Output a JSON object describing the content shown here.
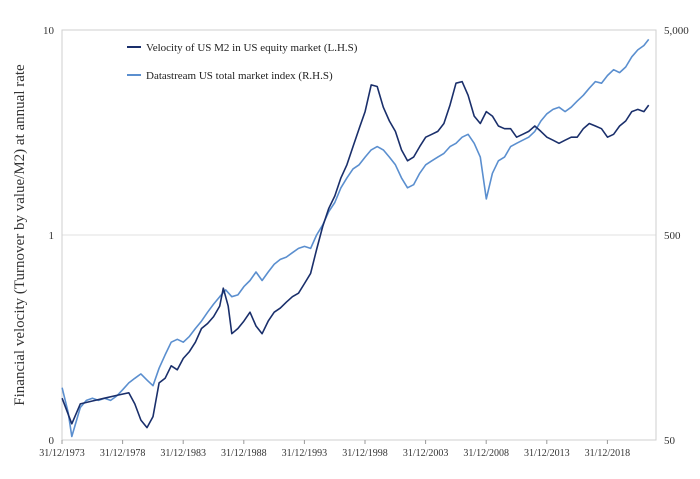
{
  "chart_data": {
    "type": "line",
    "title": "",
    "xlabel": "",
    "ylabel": "Financial velocity (Turnover by value/M2) at annual rate",
    "y_scale": "log",
    "ylim": [
      0.1,
      10
    ],
    "y_ticks": [
      {
        "value": 10,
        "label": "10"
      },
      {
        "value": 1,
        "label": "1"
      },
      {
        "value": 0.1,
        "label": "0"
      }
    ],
    "y2_scale": "log",
    "y2lim": [
      50,
      5000
    ],
    "y2_ticks": [
      {
        "value": 5000,
        "label": "5,000"
      },
      {
        "value": 500,
        "label": "500"
      },
      {
        "value": 50,
        "label": "50"
      }
    ],
    "xlim": [
      1973.99,
      2023.0
    ],
    "x_ticks": [
      {
        "value": 1973.99,
        "label": "31/12/1973"
      },
      {
        "value": 1978.99,
        "label": "31/12/1978"
      },
      {
        "value": 1983.99,
        "label": "31/12/1983"
      },
      {
        "value": 1988.99,
        "label": "31/12/1988"
      },
      {
        "value": 1993.99,
        "label": "31/12/1993"
      },
      {
        "value": 1998.99,
        "label": "31/12/1998"
      },
      {
        "value": 2003.99,
        "label": "31/12/2003"
      },
      {
        "value": 2008.99,
        "label": "31/12/2008"
      },
      {
        "value": 2013.99,
        "label": "31/12/2013"
      },
      {
        "value": 2018.99,
        "label": "31/12/2018"
      }
    ],
    "grid": true,
    "legend": "top-left",
    "series": [
      {
        "name": "Velocity of US M2 in US equity market (L.H.S)",
        "axis": "left",
        "color": "#1a2f6b",
        "x": [
          1974.0,
          1974.8,
          1975.5,
          1976.5,
          1977.5,
          1978.5,
          1979.5,
          1980.0,
          1980.5,
          1981.0,
          1981.5,
          1982.0,
          1982.5,
          1983.0,
          1983.5,
          1984.0,
          1984.5,
          1985.0,
          1985.5,
          1986.0,
          1986.5,
          1987.0,
          1987.3,
          1987.7,
          1988.0,
          1988.5,
          1989.0,
          1989.5,
          1990.0,
          1990.5,
          1991.0,
          1991.5,
          1992.0,
          1992.5,
          1993.0,
          1993.5,
          1994.0,
          1994.5,
          1995.0,
          1995.5,
          1996.0,
          1996.5,
          1997.0,
          1997.5,
          1998.0,
          1998.5,
          1999.0,
          1999.5,
          2000.0,
          2000.5,
          2001.0,
          2001.5,
          2002.0,
          2002.5,
          2003.0,
          2003.5,
          2004.0,
          2004.5,
          2005.0,
          2005.5,
          2006.0,
          2006.5,
          2007.0,
          2007.5,
          2008.0,
          2008.5,
          2009.0,
          2009.5,
          2010.0,
          2010.5,
          2011.0,
          2011.5,
          2012.0,
          2012.5,
          2013.0,
          2013.5,
          2014.0,
          2014.5,
          2015.0,
          2015.5,
          2016.0,
          2016.5,
          2017.0,
          2017.5,
          2018.0,
          2018.5,
          2019.0,
          2019.5,
          2020.0,
          2020.5,
          2021.0,
          2021.5,
          2022.0,
          2022.4
        ],
        "values": [
          0.16,
          0.12,
          0.15,
          0.155,
          0.16,
          0.165,
          0.17,
          0.15,
          0.125,
          0.115,
          0.13,
          0.19,
          0.2,
          0.23,
          0.22,
          0.25,
          0.27,
          0.3,
          0.35,
          0.37,
          0.4,
          0.45,
          0.55,
          0.45,
          0.33,
          0.35,
          0.38,
          0.42,
          0.36,
          0.33,
          0.38,
          0.42,
          0.44,
          0.47,
          0.5,
          0.52,
          0.58,
          0.65,
          0.85,
          1.1,
          1.35,
          1.55,
          1.9,
          2.2,
          2.7,
          3.3,
          4.0,
          5.4,
          5.3,
          4.2,
          3.6,
          3.2,
          2.6,
          2.3,
          2.4,
          2.7,
          3.0,
          3.1,
          3.2,
          3.5,
          4.3,
          5.5,
          5.6,
          4.8,
          3.8,
          3.5,
          4.0,
          3.8,
          3.4,
          3.3,
          3.3,
          3.0,
          3.1,
          3.2,
          3.4,
          3.2,
          3.0,
          2.9,
          2.8,
          2.9,
          3.0,
          3.0,
          3.3,
          3.5,
          3.4,
          3.3,
          3.0,
          3.1,
          3.4,
          3.6,
          4.0,
          4.1,
          4.0,
          4.3
        ]
      },
      {
        "name": "Datastream US total market index (R.H.S)",
        "axis": "right",
        "color": "#5b8fcf",
        "x": [
          1974.0,
          1974.5,
          1974.8,
          1975.5,
          1976.0,
          1976.5,
          1977.0,
          1977.5,
          1978.0,
          1978.5,
          1979.0,
          1979.5,
          1980.0,
          1980.5,
          1981.0,
          1981.5,
          1982.0,
          1982.5,
          1983.0,
          1983.5,
          1984.0,
          1984.5,
          1985.0,
          1985.5,
          1986.0,
          1986.5,
          1987.0,
          1987.5,
          1988.0,
          1988.5,
          1989.0,
          1989.5,
          1990.0,
          1990.5,
          1991.0,
          1991.5,
          1992.0,
          1992.5,
          1993.0,
          1993.5,
          1994.0,
          1994.5,
          1995.0,
          1995.5,
          1996.0,
          1996.5,
          1997.0,
          1997.5,
          1998.0,
          1998.5,
          1999.0,
          1999.5,
          2000.0,
          2000.5,
          2001.0,
          2001.5,
          2002.0,
          2002.5,
          2003.0,
          2003.5,
          2004.0,
          2004.5,
          2005.0,
          2005.5,
          2006.0,
          2006.5,
          2007.0,
          2007.5,
          2008.0,
          2008.5,
          2009.0,
          2009.5,
          2010.0,
          2010.5,
          2011.0,
          2011.5,
          2012.0,
          2012.5,
          2013.0,
          2013.5,
          2014.0,
          2014.5,
          2015.0,
          2015.5,
          2016.0,
          2016.5,
          2017.0,
          2017.5,
          2018.0,
          2018.5,
          2019.0,
          2019.5,
          2020.0,
          2020.5,
          2021.0,
          2021.5,
          2022.0,
          2022.4
        ],
        "values": [
          90,
          68,
          52,
          72,
          78,
          80,
          78,
          80,
          78,
          82,
          88,
          95,
          100,
          105,
          98,
          92,
          112,
          130,
          150,
          155,
          150,
          160,
          175,
          190,
          210,
          230,
          250,
          270,
          250,
          255,
          280,
          300,
          330,
          300,
          330,
          360,
          380,
          390,
          410,
          430,
          440,
          430,
          500,
          560,
          650,
          720,
          850,
          950,
          1050,
          1100,
          1200,
          1300,
          1350,
          1300,
          1200,
          1100,
          950,
          850,
          880,
          1000,
          1100,
          1150,
          1200,
          1250,
          1350,
          1400,
          1500,
          1550,
          1400,
          1200,
          750,
          1000,
          1150,
          1200,
          1350,
          1400,
          1450,
          1500,
          1600,
          1800,
          1950,
          2050,
          2100,
          2000,
          2100,
          2250,
          2400,
          2600,
          2800,
          2750,
          3000,
          3200,
          3100,
          3300,
          3700,
          4000,
          4200,
          4500
        ]
      }
    ]
  }
}
